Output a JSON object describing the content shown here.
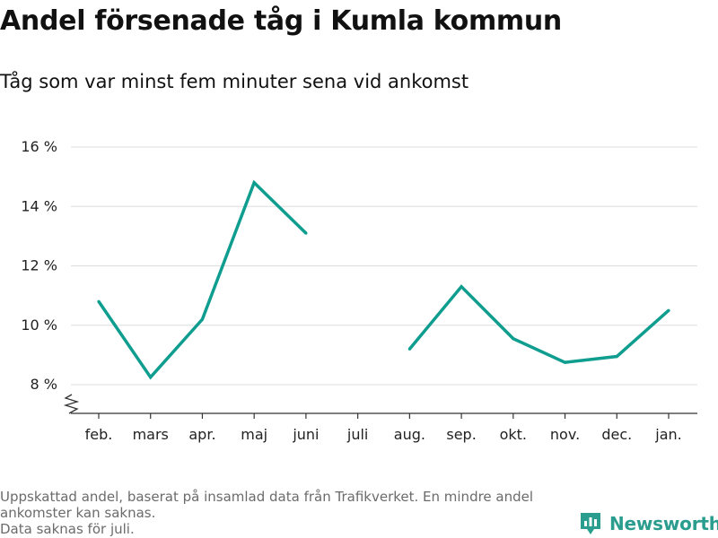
{
  "title": "Andel försenade tåg i Kumla kommun",
  "subtitle": "Tåg som var minst fem minuter sena vid ankomst",
  "colors": {
    "line": "#0f9d8f",
    "grid": "#dddddd",
    "axis": "#333333",
    "text": "#222222",
    "footnote": "#6b6b6b",
    "brand": "#2a9d8f"
  },
  "chart_data": {
    "type": "line",
    "categories": [
      "feb.",
      "mars",
      "apr.",
      "maj",
      "juni",
      "juli",
      "aug.",
      "sep.",
      "okt.",
      "nov.",
      "dec.",
      "jan."
    ],
    "series": [
      {
        "values": [
          10.8,
          8.25,
          10.2,
          14.8,
          13.1,
          null,
          9.2,
          11.3,
          9.55,
          8.75,
          8.95,
          10.5
        ]
      }
    ],
    "yticks": [
      8,
      10,
      12,
      14,
      16
    ],
    "ytick_labels": [
      "8 %",
      "10 %",
      "12 %",
      "14 %",
      "16 %"
    ],
    "ylim": [
      7,
      16
    ],
    "axis_break": true,
    "grid": true,
    "legend": "none"
  },
  "footnote": {
    "line1": "Uppskattad andel, baserat på insamlad data från Trafikverket. En mindre andel",
    "line2": "ankomster kan saknas.",
    "line3": "Data saknas för juli."
  },
  "brand": {
    "name": "Newsworthy",
    "icon": "newsworthy-logo-icon"
  }
}
